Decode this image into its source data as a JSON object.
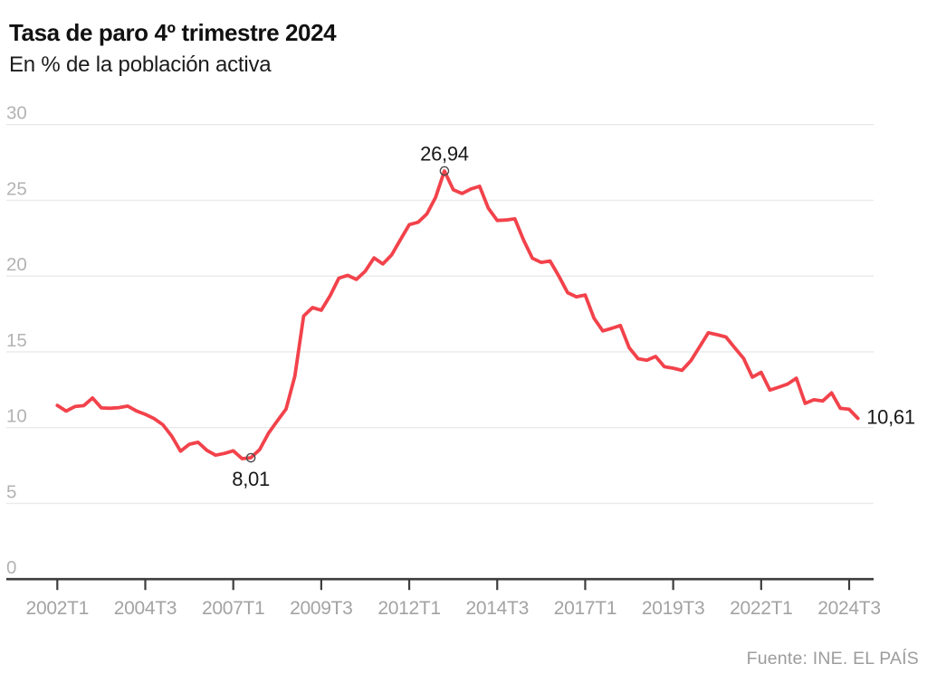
{
  "header": {
    "title": "Tasa de paro 4º trimestre 2024",
    "subtitle": "En % de la población activa"
  },
  "footer": {
    "source": "Fuente: INE. EL PAÍS"
  },
  "chart_data": {
    "type": "line",
    "title": "Tasa de paro 4º trimestre 2024",
    "subtitle": "En % de la población activa",
    "ylabel": "% de la población activa",
    "xlabel": "",
    "ylim": [
      0,
      30
    ],
    "grid": "horizontal",
    "legend": false,
    "y_ticks": [
      0,
      5,
      10,
      15,
      20,
      25,
      30
    ],
    "x_ticks": [
      {
        "label": "2002T1",
        "index": 0
      },
      {
        "label": "2004T3",
        "index": 10
      },
      {
        "label": "2007T1",
        "index": 20
      },
      {
        "label": "2009T3",
        "index": 30
      },
      {
        "label": "2012T1",
        "index": 40
      },
      {
        "label": "2014T3",
        "index": 50
      },
      {
        "label": "2017T1",
        "index": 60
      },
      {
        "label": "2019T3",
        "index": 70
      },
      {
        "label": "2022T1",
        "index": 80
      },
      {
        "label": "2024T3",
        "index": 90
      }
    ],
    "categories": [
      "2002T1",
      "2002T2",
      "2002T3",
      "2002T4",
      "2003T1",
      "2003T2",
      "2003T3",
      "2003T4",
      "2004T1",
      "2004T2",
      "2004T3",
      "2004T4",
      "2005T1",
      "2005T2",
      "2005T3",
      "2005T4",
      "2006T1",
      "2006T2",
      "2006T3",
      "2006T4",
      "2007T1",
      "2007T2",
      "2007T3",
      "2007T4",
      "2008T1",
      "2008T2",
      "2008T3",
      "2008T4",
      "2009T1",
      "2009T2",
      "2009T3",
      "2009T4",
      "2010T1",
      "2010T2",
      "2010T3",
      "2010T4",
      "2011T1",
      "2011T2",
      "2011T3",
      "2011T4",
      "2012T1",
      "2012T2",
      "2012T3",
      "2012T4",
      "2013T1",
      "2013T2",
      "2013T3",
      "2013T4",
      "2014T1",
      "2014T2",
      "2014T3",
      "2014T4",
      "2015T1",
      "2015T2",
      "2015T3",
      "2015T4",
      "2016T1",
      "2016T2",
      "2016T3",
      "2016T4",
      "2017T1",
      "2017T2",
      "2017T3",
      "2017T4",
      "2018T1",
      "2018T2",
      "2018T3",
      "2018T4",
      "2019T1",
      "2019T2",
      "2019T3",
      "2019T4",
      "2020T1",
      "2020T2",
      "2020T3",
      "2020T4",
      "2021T1",
      "2021T2",
      "2021T3",
      "2021T4",
      "2022T1",
      "2022T2",
      "2022T3",
      "2022T4",
      "2023T1",
      "2023T2",
      "2023T3",
      "2023T4",
      "2024T1",
      "2024T2",
      "2024T3",
      "2024T4"
    ],
    "series": [
      {
        "name": "Tasa de paro",
        "values": [
          11.47,
          11.09,
          11.39,
          11.45,
          11.96,
          11.3,
          11.28,
          11.32,
          11.42,
          11.1,
          10.88,
          10.6,
          10.19,
          9.45,
          8.45,
          8.9,
          9.03,
          8.5,
          8.18,
          8.3,
          8.47,
          7.95,
          8.01,
          8.55,
          9.63,
          10.44,
          11.23,
          13.4,
          17.36,
          17.92,
          17.75,
          18.7,
          19.86,
          20.05,
          19.78,
          20.33,
          21.2,
          20.8,
          21.4,
          22.4,
          23.4,
          23.55,
          24.1,
          25.2,
          26.94,
          25.7,
          25.45,
          25.75,
          25.93,
          24.47,
          23.67,
          23.7,
          23.78,
          22.37,
          21.18,
          20.9,
          21.0,
          20.0,
          18.91,
          18.63,
          18.75,
          17.22,
          16.38,
          16.55,
          16.74,
          15.28,
          14.55,
          14.45,
          14.7,
          14.02,
          13.92,
          13.78,
          14.41,
          15.33,
          16.26,
          16.13,
          15.98,
          15.26,
          14.57,
          13.33,
          13.65,
          12.48,
          12.67,
          12.87,
          13.26,
          11.6,
          11.84,
          11.76,
          12.29,
          11.27,
          11.21,
          10.61
        ]
      }
    ],
    "annotations": [
      {
        "label": "26,94",
        "category": "2013T1",
        "value": 26.94,
        "marker": true,
        "placement": "above"
      },
      {
        "label": "8,01",
        "category": "2007T3",
        "value": 8.01,
        "marker": true,
        "placement": "below"
      },
      {
        "label": "10,61",
        "category": "2024T4",
        "value": 10.61,
        "marker": false,
        "placement": "right"
      }
    ],
    "colors": {
      "line": "#f2424b",
      "grid": "#eaeaea",
      "axis": "#3d3d3d",
      "x_label": "#a3a3a3",
      "y_label": "#b3b3b3",
      "annotation": "#191919",
      "marker_stroke": "#4c4c4c",
      "source": "#9c9c9c"
    }
  }
}
